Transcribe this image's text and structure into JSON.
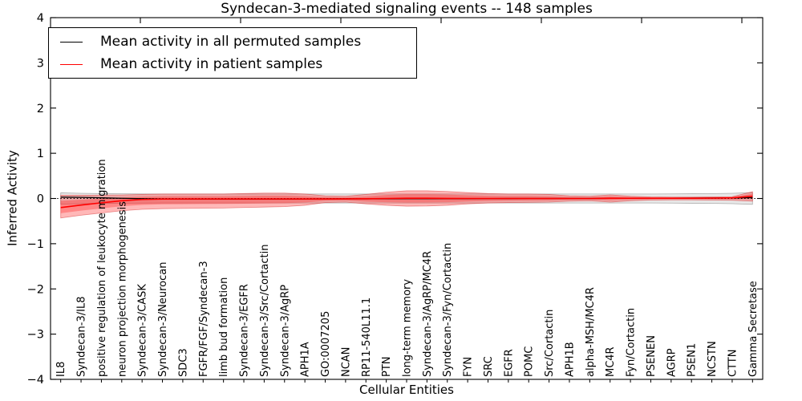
{
  "chart_data": {
    "type": "line",
    "title": "Syndecan-3-mediated signaling events -- 148 samples",
    "xlabel": "Cellular Entities",
    "ylabel": "Inferred Activity",
    "ylim": [
      -4,
      4
    ],
    "ytick_values": [
      4,
      3,
      2,
      1,
      0,
      -1,
      -2,
      -3,
      -4
    ],
    "ytick_labels": [
      "4",
      "3",
      "2",
      "1",
      "0",
      "−1",
      "−2",
      "−3",
      "−4"
    ],
    "grid": false,
    "legend_position": "upper left",
    "zero_line": {
      "style": "dotted",
      "color": "#000000",
      "y": 0
    },
    "categories": [
      "IL8",
      "Syndecan-3/IL8",
      "positive regulation of leukocyte migration",
      "neuron projection morphogenesis",
      "Syndecan-3/CASK",
      "Syndecan-3/Neurocan",
      "SDC3",
      "FGFR/FGF/Syndecan-3",
      "limb bud formation",
      "Syndecan-3/EGFR",
      "Syndecan-3/Src/Cortactin",
      "Syndecan-3/AgRP",
      "APH1A",
      "GO:0007205",
      "NCAN",
      "RP11-540L11.1",
      "PTN",
      "long-term memory",
      "Syndecan-3/AgRP/MC4R",
      "Syndecan-3/Fyn/Cortactin",
      "FYN",
      "SRC",
      "EGFR",
      "POMC",
      "Src/Cortactin",
      "APH1B",
      "alpha-MSH/MC4R",
      "MC4R",
      "Fyn/Cortactin",
      "PSENEN",
      "AGRP",
      "PSEN1",
      "NCSTN",
      "CTTN",
      "Gamma Secretase"
    ],
    "series": [
      {
        "name": "Mean activity in all permuted samples",
        "color": "#000000",
        "band_fill": "rgba(110,110,110,0.17)",
        "band_edge": "rgba(90,90,90,0.45)",
        "values": [
          0.03,
          0.025,
          0.015,
          0.005,
          -0.005,
          -0.01,
          -0.012,
          -0.012,
          -0.012,
          -0.013,
          -0.013,
          -0.012,
          -0.011,
          -0.009,
          -0.008,
          -0.008,
          -0.006,
          -0.005,
          -0.005,
          -0.004,
          -0.003,
          -0.002,
          -0.001,
          0,
          0,
          0,
          0,
          0.002,
          0.003,
          0.005,
          0.006,
          0.008,
          0.01,
          0.012,
          0.02
        ],
        "band_upper": [
          0.125,
          0.115,
          0.108,
          0.104,
          0.102,
          0.1,
          0.1,
          0.1,
          0.1,
          0.1,
          0.1,
          0.1,
          0.1,
          0.1,
          0.1,
          0.1,
          0.1,
          0.1,
          0.1,
          0.1,
          0.1,
          0.1,
          0.1,
          0.1,
          0.1,
          0.1,
          0.1,
          0.1,
          0.1,
          0.1,
          0.102,
          0.105,
          0.108,
          0.115,
          0.13
        ],
        "band_lower": [
          -0.125,
          -0.115,
          -0.108,
          -0.104,
          -0.102,
          -0.1,
          -0.1,
          -0.1,
          -0.1,
          -0.1,
          -0.1,
          -0.1,
          -0.1,
          -0.1,
          -0.1,
          -0.1,
          -0.1,
          -0.1,
          -0.1,
          -0.1,
          -0.1,
          -0.1,
          -0.1,
          -0.1,
          -0.1,
          -0.1,
          -0.1,
          -0.1,
          -0.1,
          -0.1,
          -0.102,
          -0.105,
          -0.108,
          -0.115,
          -0.13
        ]
      },
      {
        "name": "Mean activity in patient samples",
        "color": "#ff0000",
        "band_fill": "rgba(255,20,20,0.30)",
        "band_edge": "rgba(215,40,40,0.50)",
        "values": [
          -0.2,
          -0.145,
          -0.095,
          -0.05,
          -0.022,
          -0.012,
          -0.01,
          -0.01,
          -0.01,
          -0.01,
          -0.01,
          -0.01,
          -0.01,
          -0.01,
          -0.008,
          -0.005,
          0,
          0.005,
          0.005,
          0.002,
          0,
          0,
          0,
          0,
          0,
          0,
          0,
          0.005,
          0.005,
          0.005,
          0.005,
          0.006,
          0.008,
          0.015,
          0.05
        ],
        "band_upper": [
          0.07,
          0.07,
          0.075,
          0.08,
          0.09,
          0.1,
          0.1,
          0.1,
          0.1,
          0.11,
          0.12,
          0.12,
          0.1,
          0.06,
          0.05,
          0.09,
          0.14,
          0.17,
          0.17,
          0.155,
          0.13,
          0.11,
          0.1,
          0.1,
          0.09,
          0.06,
          0.05,
          0.08,
          0.05,
          0.035,
          0.03,
          0.03,
          0.035,
          0.04,
          0.15
        ],
        "band_lower": [
          -0.43,
          -0.37,
          -0.32,
          -0.27,
          -0.24,
          -0.225,
          -0.22,
          -0.215,
          -0.21,
          -0.2,
          -0.19,
          -0.18,
          -0.15,
          -0.09,
          -0.08,
          -0.12,
          -0.15,
          -0.17,
          -0.165,
          -0.15,
          -0.12,
          -0.1,
          -0.09,
          -0.085,
          -0.08,
          -0.06,
          -0.05,
          -0.08,
          -0.05,
          -0.035,
          -0.03,
          -0.03,
          -0.035,
          -0.04,
          -0.06
        ]
      }
    ]
  }
}
